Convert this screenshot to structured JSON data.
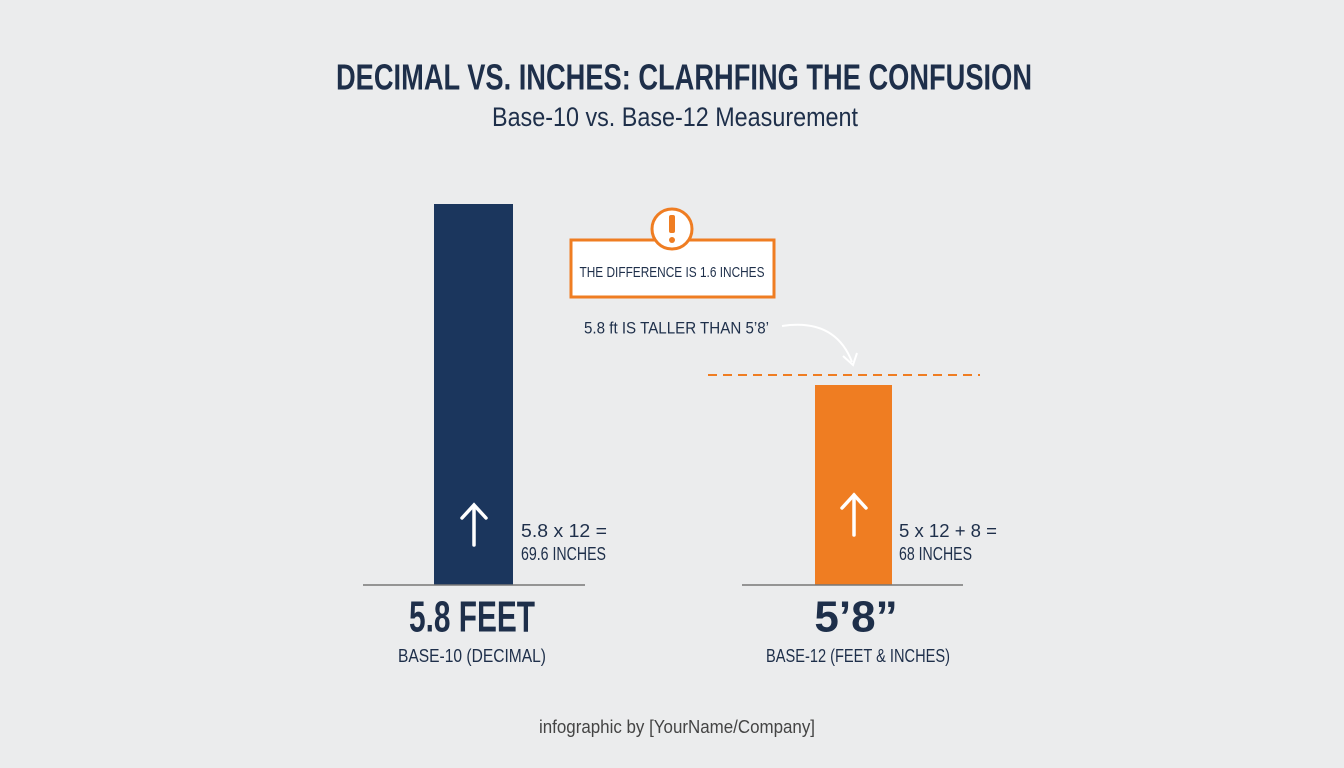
{
  "header": {
    "title": "DECIMAL VS. INCHES: CLARHFING THE CONFUSION",
    "subtitle": "Base-10 vs. Base-12 Measurement"
  },
  "callout": {
    "text": "THE DIFFERENCE IS 1.6 INCHES",
    "note": "5.8 ft IS TALLER THAN 5’8’"
  },
  "left": {
    "formula": "5.8 x 12 =",
    "result": "69.6 INCHES",
    "label": "5.8 FEET",
    "caption": "BASE-10 (DECIMAL)"
  },
  "right": {
    "formula": "5 x 12 + 8 =",
    "result": "68 INCHES",
    "label": "5’8”",
    "caption": "BASE-12 (FEET & INCHES)"
  },
  "footer": {
    "credit": "infographic by [YourName/Company]"
  }
}
